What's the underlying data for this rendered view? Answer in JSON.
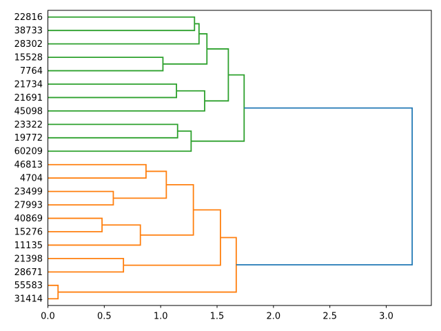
{
  "figure": {
    "background_color": "#ffffff",
    "title": ""
  },
  "chart_data": {
    "type": "dendrogram",
    "title": "",
    "xlabel": "",
    "ylabel": "",
    "orientation": "leaves-left-root-right",
    "grid": false,
    "legend": "none",
    "xlim": [
      0,
      3.4
    ],
    "x_ticks": [
      0.0,
      0.5,
      1.0,
      1.5,
      2.0,
      2.5,
      3.0
    ],
    "x_tick_labels": [
      "0.0",
      "0.5",
      "1.0",
      "1.5",
      "2.0",
      "2.5",
      "3.0"
    ],
    "leaves": [
      "22816",
      "38733",
      "28302",
      "15528",
      "7764",
      "21734",
      "21691",
      "45098",
      "23322",
      "19772",
      "60209",
      "46813",
      "4704",
      "23499",
      "27993",
      "40869",
      "15276",
      "11135",
      "21398",
      "28671",
      "55583",
      "31414"
    ],
    "colors": {
      "cluster_green": "#2ca02c",
      "cluster_orange": "#ff7f0e",
      "link_blue": "#1f77b4",
      "axis": "#000000",
      "text": "#000000"
    },
    "merges": [
      {
        "id": "m1",
        "children": [
          "22816",
          "38733"
        ],
        "distance": 1.3,
        "color": "green"
      },
      {
        "id": "m2",
        "children": [
          "m1",
          "28302"
        ],
        "distance": 1.34,
        "color": "green"
      },
      {
        "id": "m3",
        "children": [
          "15528",
          "7764"
        ],
        "distance": 1.02,
        "color": "green"
      },
      {
        "id": "m4",
        "children": [
          "m2",
          "m3"
        ],
        "distance": 1.41,
        "color": "green"
      },
      {
        "id": "m5",
        "children": [
          "21734",
          "21691"
        ],
        "distance": 1.14,
        "color": "green"
      },
      {
        "id": "m6",
        "children": [
          "m5",
          "45098"
        ],
        "distance": 1.39,
        "color": "green"
      },
      {
        "id": "m7",
        "children": [
          "m4",
          "m6"
        ],
        "distance": 1.6,
        "color": "green"
      },
      {
        "id": "m8",
        "children": [
          "23322",
          "19772"
        ],
        "distance": 1.15,
        "color": "green"
      },
      {
        "id": "m9",
        "children": [
          "m8",
          "60209"
        ],
        "distance": 1.27,
        "color": "green"
      },
      {
        "id": "m10",
        "children": [
          "m7",
          "m9"
        ],
        "distance": 1.74,
        "color": "green"
      },
      {
        "id": "m11",
        "children": [
          "46813",
          "4704"
        ],
        "distance": 0.87,
        "color": "orange"
      },
      {
        "id": "m12",
        "children": [
          "23499",
          "27993"
        ],
        "distance": 0.58,
        "color": "orange"
      },
      {
        "id": "m13",
        "children": [
          "m11",
          "m12"
        ],
        "distance": 1.05,
        "color": "orange"
      },
      {
        "id": "m14",
        "children": [
          "40869",
          "15276"
        ],
        "distance": 0.48,
        "color": "orange"
      },
      {
        "id": "m15",
        "children": [
          "m14",
          "11135"
        ],
        "distance": 0.82,
        "color": "orange"
      },
      {
        "id": "m16",
        "children": [
          "m13",
          "m15"
        ],
        "distance": 1.29,
        "color": "orange"
      },
      {
        "id": "m17",
        "children": [
          "21398",
          "28671"
        ],
        "distance": 0.67,
        "color": "orange"
      },
      {
        "id": "m18",
        "children": [
          "m16",
          "m17"
        ],
        "distance": 1.53,
        "color": "orange"
      },
      {
        "id": "m19",
        "children": [
          "55583",
          "31414"
        ],
        "distance": 0.09,
        "color": "orange"
      },
      {
        "id": "m20",
        "children": [
          "m18",
          "m19"
        ],
        "distance": 1.67,
        "color": "orange"
      },
      {
        "id": "m21",
        "children": [
          "m10",
          "m20"
        ],
        "distance": 3.23,
        "color": "blue"
      }
    ]
  }
}
